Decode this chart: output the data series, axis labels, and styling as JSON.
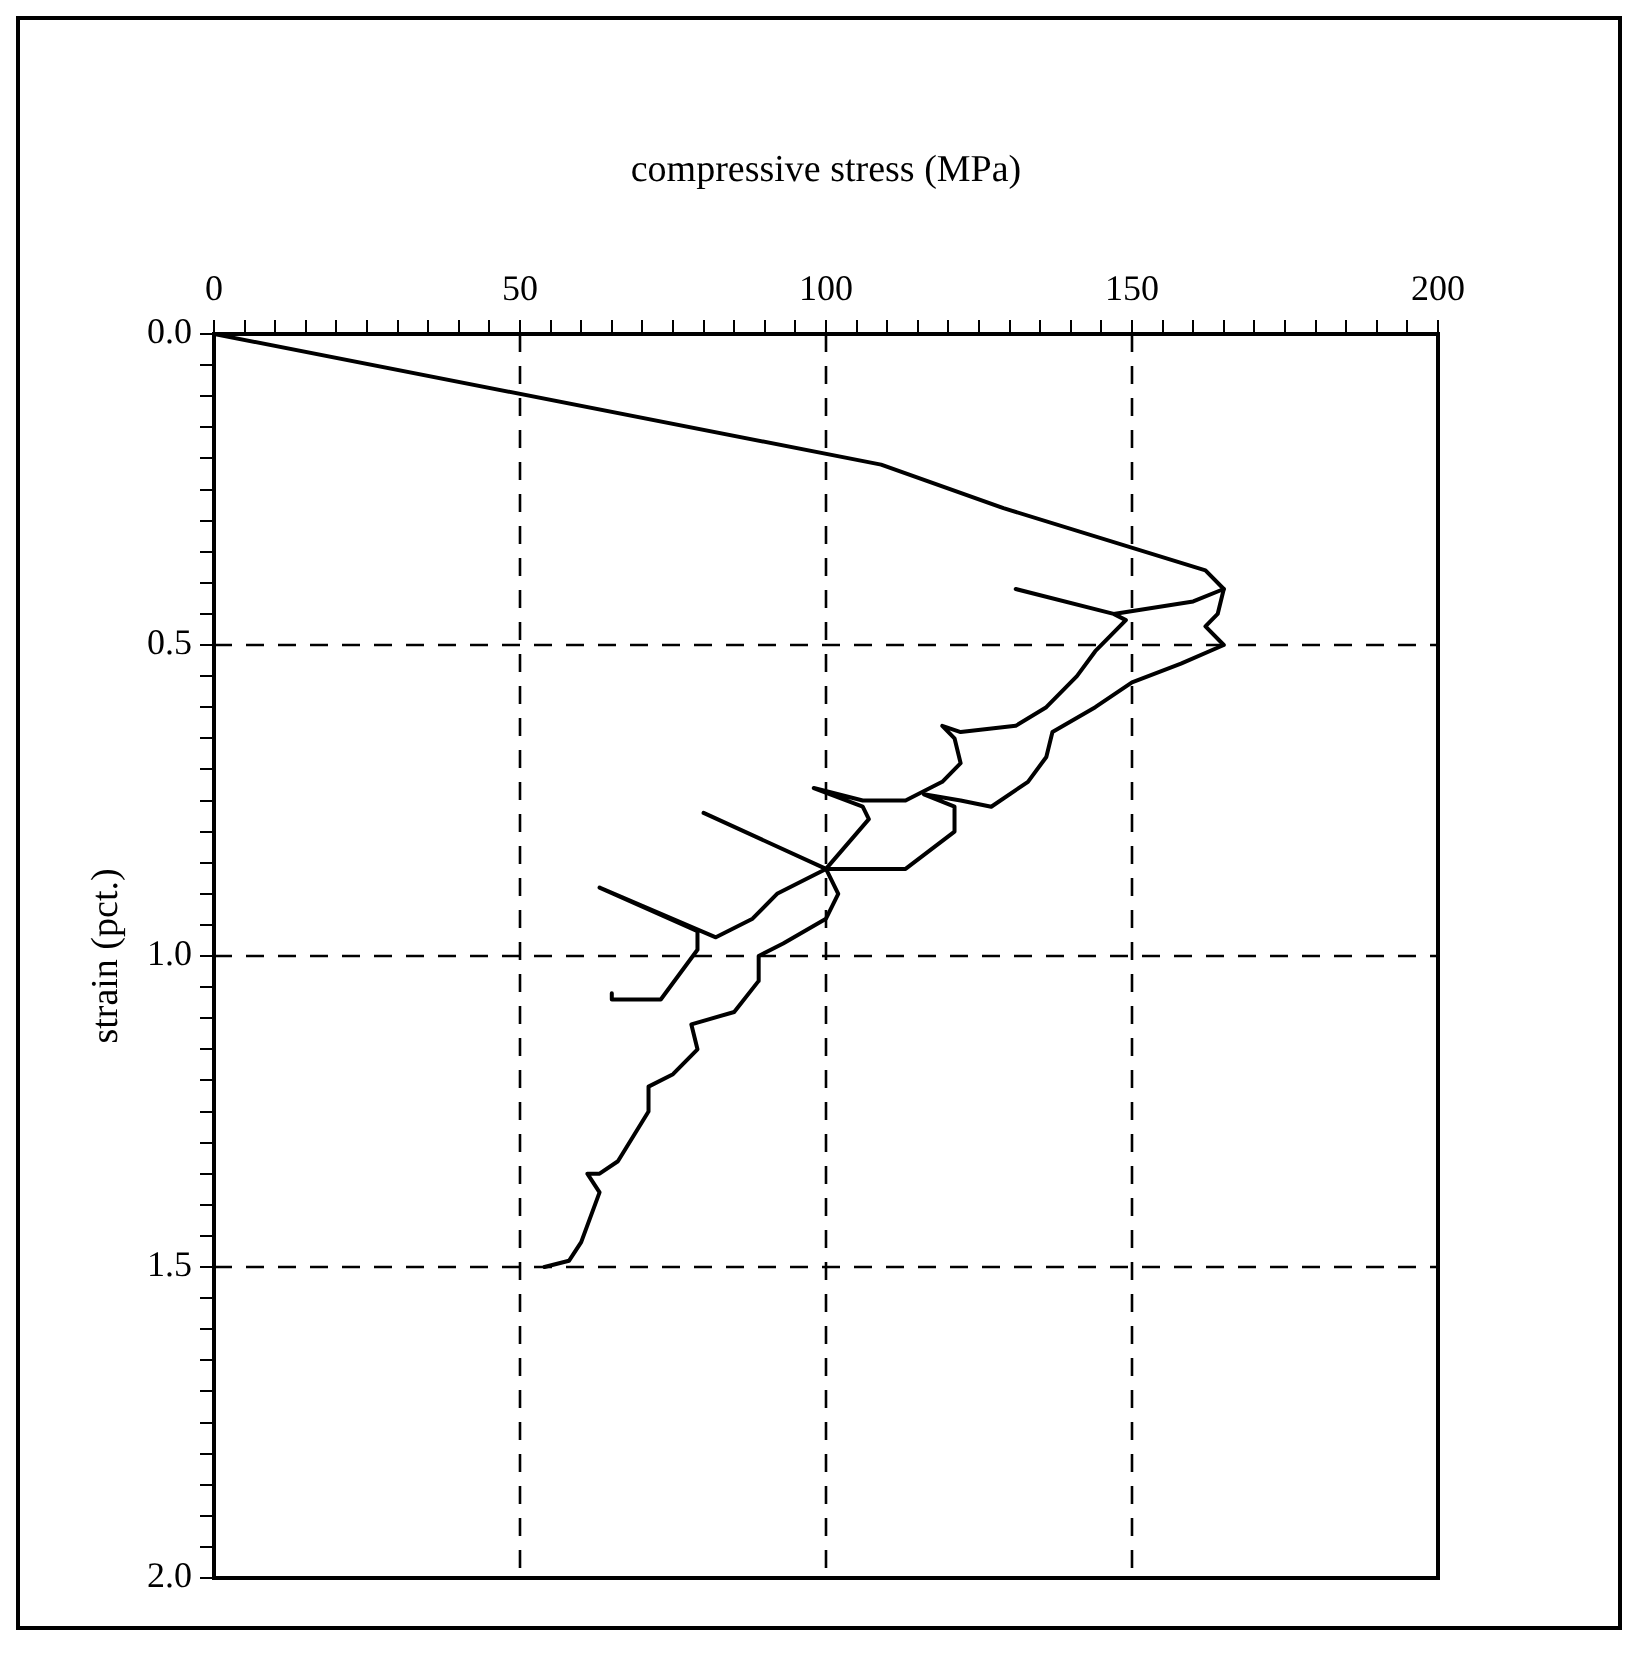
{
  "chart_data": {
    "type": "line",
    "xlabel": "compressive stress (MPa)",
    "ylabel": "strain (pct.)",
    "xlim": [
      0,
      200
    ],
    "ylim": [
      2,
      0
    ],
    "xticks": [
      0,
      {
        "value": 5,
        "label": null
      },
      {
        "value": 10,
        "label": null
      },
      {
        "value": 15,
        "label": null
      },
      {
        "value": 20,
        "label": null
      },
      {
        "value": 25,
        "label": null
      },
      {
        "value": 30,
        "label": null
      },
      {
        "value": 35,
        "label": null
      },
      {
        "value": 40,
        "label": null
      },
      {
        "value": 45,
        "label": null
      },
      50,
      {
        "value": 55,
        "label": null
      },
      {
        "value": 60,
        "label": null
      },
      {
        "value": 65,
        "label": null
      },
      {
        "value": 70,
        "label": null
      },
      {
        "value": 75,
        "label": null
      },
      {
        "value": 80,
        "label": null
      },
      {
        "value": 85,
        "label": null
      },
      {
        "value": 90,
        "label": null
      },
      {
        "value": 95,
        "label": null
      },
      100,
      {
        "value": 105,
        "label": null
      },
      {
        "value": 110,
        "label": null
      },
      {
        "value": 115,
        "label": null
      },
      {
        "value": 120,
        "label": null
      },
      {
        "value": 125,
        "label": null
      },
      {
        "value": 130,
        "label": null
      },
      {
        "value": 135,
        "label": null
      },
      {
        "value": 140,
        "label": null
      },
      {
        "value": 145,
        "label": null
      },
      150,
      {
        "value": 155,
        "label": null
      },
      {
        "value": 160,
        "label": null
      },
      {
        "value": 165,
        "label": null
      },
      {
        "value": 170,
        "label": null
      },
      {
        "value": 175,
        "label": null
      },
      {
        "value": 180,
        "label": null
      },
      {
        "value": 185,
        "label": null
      },
      {
        "value": 190,
        "label": null
      },
      {
        "value": 195,
        "label": null
      },
      200
    ],
    "yticks": [
      {
        "value": 0,
        "label": "0.0"
      },
      {
        "value": 0.05,
        "label": null
      },
      {
        "value": 0.1,
        "label": null
      },
      {
        "value": 0.15,
        "label": null
      },
      {
        "value": 0.2,
        "label": null
      },
      {
        "value": 0.25,
        "label": null
      },
      {
        "value": 0.3,
        "label": null
      },
      {
        "value": 0.35,
        "label": null
      },
      {
        "value": 0.4,
        "label": null
      },
      {
        "value": 0.45,
        "label": null
      },
      0.5,
      {
        "value": 0.55,
        "label": null
      },
      {
        "value": 0.6,
        "label": null
      },
      {
        "value": 0.65,
        "label": null
      },
      {
        "value": 0.7,
        "label": null
      },
      {
        "value": 0.75,
        "label": null
      },
      {
        "value": 0.8,
        "label": null
      },
      {
        "value": 0.85,
        "label": null
      },
      {
        "value": 0.9,
        "label": null
      },
      {
        "value": 0.95,
        "label": null
      },
      {
        "value": 1,
        "label": "1.0"
      },
      {
        "value": 1.05,
        "label": null
      },
      {
        "value": 1.1,
        "label": null
      },
      {
        "value": 1.15,
        "label": null
      },
      {
        "value": 1.2,
        "label": null
      },
      {
        "value": 1.25,
        "label": null
      },
      {
        "value": 1.3,
        "label": null
      },
      {
        "value": 1.35,
        "label": null
      },
      {
        "value": 1.4,
        "label": null
      },
      {
        "value": 1.45,
        "label": null
      },
      1.5,
      {
        "value": 1.55,
        "label": null
      },
      {
        "value": 1.6,
        "label": null
      },
      {
        "value": 1.65,
        "label": null
      },
      {
        "value": 1.7,
        "label": null
      },
      {
        "value": 1.75,
        "label": null
      },
      {
        "value": 1.8,
        "label": null
      },
      {
        "value": 1.85,
        "label": null
      },
      {
        "value": 1.9,
        "label": null
      },
      {
        "value": 1.95,
        "label": null
      },
      {
        "value": 2,
        "label": "2.0"
      }
    ],
    "grid": true,
    "marker": "none",
    "line_style": "solid",
    "series": [
      {
        "color": "#000000",
        "x": [
          0,
          109,
          129,
          162,
          165,
          164,
          162,
          165,
          158,
          150,
          144,
          137,
          136,
          133,
          127,
          122,
          116,
          121,
          121,
          113,
          109,
          100,
          102,
          100,
          93,
          89,
          89,
          85,
          78,
          79,
          75,
          71,
          71,
          66,
          63,
          61,
          63,
          60,
          58,
          54
        ],
        "values": [
          0,
          0.21,
          0.28,
          0.38,
          0.41,
          0.45,
          0.47,
          0.5,
          0.53,
          0.56,
          0.6,
          0.64,
          0.68,
          0.72,
          0.76,
          0.75,
          0.74,
          0.76,
          0.8,
          0.86,
          0.86,
          0.86,
          0.9,
          0.94,
          0.98,
          1.0,
          1.04,
          1.09,
          1.11,
          1.15,
          1.19,
          1.21,
          1.25,
          1.33,
          1.35,
          1.35,
          1.38,
          1.46,
          1.49,
          1.5
        ]
      },
      {
        "color": "#000000",
        "x": [
          165,
          160,
          147,
          131,
          147,
          149,
          144,
          141,
          136,
          131,
          122,
          119,
          121,
          122,
          119,
          113,
          109,
          106,
          98,
          106,
          107,
          100,
          80,
          100,
          92,
          88,
          82,
          63,
          79,
          79,
          73,
          65,
          65
        ],
        "values": [
          0.41,
          0.43,
          0.45,
          0.41,
          0.45,
          0.46,
          0.51,
          0.55,
          0.6,
          0.63,
          0.64,
          0.63,
          0.65,
          0.69,
          0.72,
          0.75,
          0.75,
          0.75,
          0.73,
          0.76,
          0.78,
          0.86,
          0.77,
          0.86,
          0.9,
          0.94,
          0.97,
          0.89,
          0.96,
          0.99,
          1.07,
          1.07,
          1.06
        ]
      }
    ]
  }
}
